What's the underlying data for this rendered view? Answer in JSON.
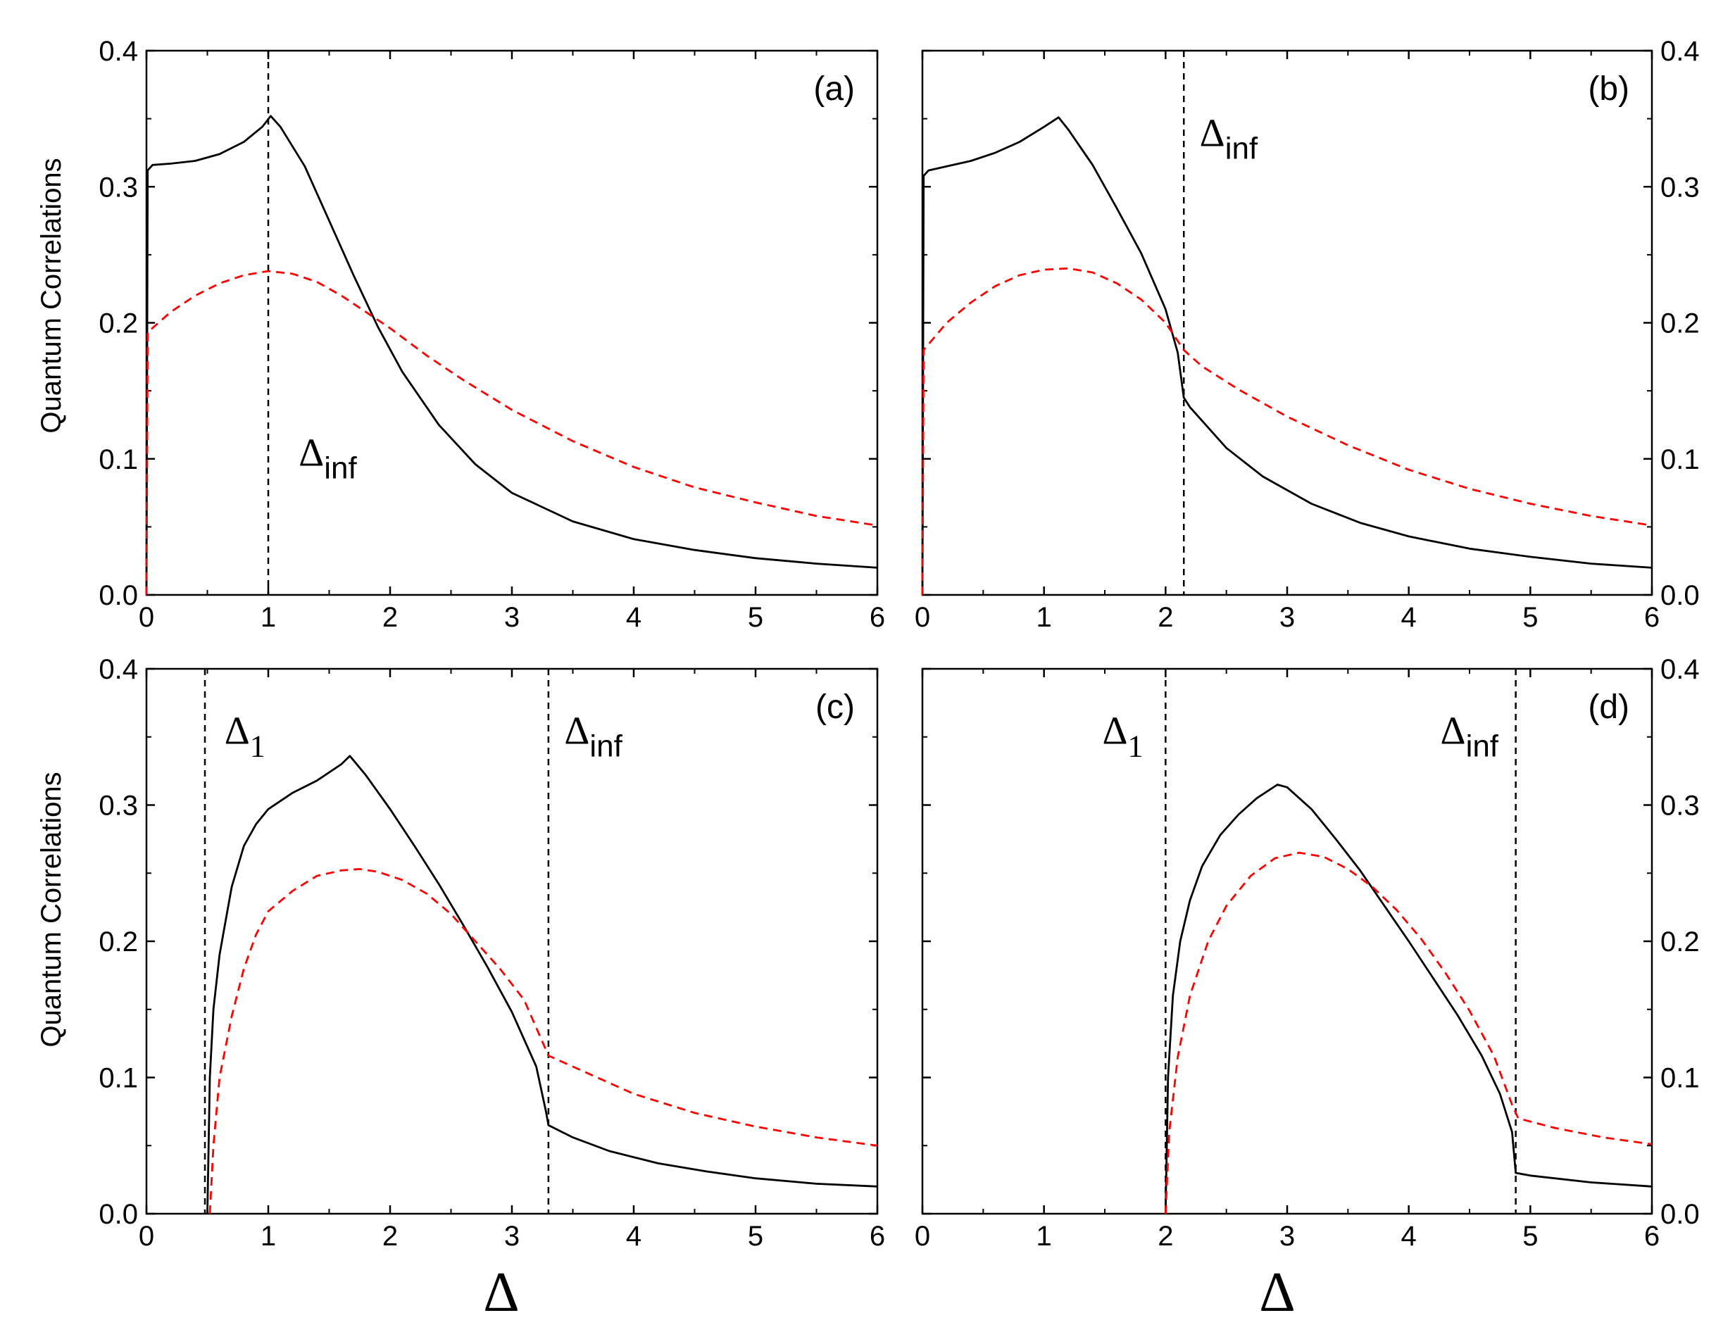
{
  "figure": {
    "ylabel": "Quantum Correlations",
    "xlabel": "Δ"
  },
  "colors": {
    "solid_series": "#000000",
    "dashed_series": "#ff0000",
    "marker_lines": "#000000"
  },
  "chart_data": [
    {
      "panel_label": "(a)",
      "type": "line",
      "xlim": [
        0,
        6
      ],
      "ylim": [
        0,
        0.4
      ],
      "x_ticks": [
        "0",
        "1",
        "2",
        "3",
        "4",
        "5",
        "6"
      ],
      "y_ticks": [
        "0.0",
        "0.1",
        "0.2",
        "0.3",
        "0.4"
      ],
      "y_tick_labels_side": "left",
      "markers": [
        {
          "x": 1.0,
          "symbol": "Δ",
          "sub": "inf",
          "label_x": 1.25,
          "label_y": 0.095
        }
      ],
      "series": [
        {
          "style": "solid",
          "color": "#000000",
          "points": [
            [
              0.0,
              0.0
            ],
            [
              0.01,
              0.312
            ],
            [
              0.05,
              0.316
            ],
            [
              0.2,
              0.317
            ],
            [
              0.4,
              0.319
            ],
            [
              0.6,
              0.324
            ],
            [
              0.8,
              0.333
            ],
            [
              0.95,
              0.344
            ],
            [
              1.02,
              0.352
            ],
            [
              1.1,
              0.344
            ],
            [
              1.3,
              0.315
            ],
            [
              1.5,
              0.275
            ],
            [
              1.7,
              0.235
            ],
            [
              1.9,
              0.197
            ],
            [
              2.1,
              0.164
            ],
            [
              2.4,
              0.125
            ],
            [
              2.7,
              0.096
            ],
            [
              3.0,
              0.075
            ],
            [
              3.5,
              0.054
            ],
            [
              4.0,
              0.041
            ],
            [
              4.5,
              0.033
            ],
            [
              5.0,
              0.027
            ],
            [
              5.5,
              0.023
            ],
            [
              6.0,
              0.02
            ]
          ]
        },
        {
          "style": "dashed",
          "color": "#ff0000",
          "points": [
            [
              0.0,
              0.0
            ],
            [
              0.01,
              0.193
            ],
            [
              0.2,
              0.208
            ],
            [
              0.4,
              0.22
            ],
            [
              0.6,
              0.229
            ],
            [
              0.8,
              0.235
            ],
            [
              1.0,
              0.238
            ],
            [
              1.2,
              0.236
            ],
            [
              1.4,
              0.23
            ],
            [
              1.6,
              0.22
            ],
            [
              1.8,
              0.208
            ],
            [
              2.0,
              0.196
            ],
            [
              2.3,
              0.176
            ],
            [
              2.6,
              0.158
            ],
            [
              3.0,
              0.136
            ],
            [
              3.5,
              0.113
            ],
            [
              4.0,
              0.094
            ],
            [
              4.5,
              0.079
            ],
            [
              5.0,
              0.068
            ],
            [
              5.5,
              0.058
            ],
            [
              6.0,
              0.051
            ]
          ]
        }
      ]
    },
    {
      "panel_label": "(b)",
      "type": "line",
      "xlim": [
        0,
        6
      ],
      "ylim": [
        0,
        0.4
      ],
      "x_ticks": [
        "0",
        "1",
        "2",
        "3",
        "4",
        "5",
        "6"
      ],
      "y_ticks": [
        "0.0",
        "0.1",
        "0.2",
        "0.3",
        "0.4"
      ],
      "y_tick_labels_side": "right",
      "markers": [
        {
          "x": 2.15,
          "symbol": "Δ",
          "sub": "inf",
          "label_x": 2.28,
          "label_y": 0.33
        }
      ],
      "series": [
        {
          "style": "solid",
          "color": "#000000",
          "points": [
            [
              0.0,
              0.0
            ],
            [
              0.01,
              0.308
            ],
            [
              0.05,
              0.312
            ],
            [
              0.2,
              0.315
            ],
            [
              0.4,
              0.319
            ],
            [
              0.6,
              0.325
            ],
            [
              0.8,
              0.333
            ],
            [
              1.0,
              0.344
            ],
            [
              1.12,
              0.351
            ],
            [
              1.2,
              0.342
            ],
            [
              1.4,
              0.316
            ],
            [
              1.6,
              0.284
            ],
            [
              1.8,
              0.251
            ],
            [
              2.0,
              0.21
            ],
            [
              2.1,
              0.178
            ],
            [
              2.15,
              0.145
            ],
            [
              2.2,
              0.138
            ],
            [
              2.5,
              0.108
            ],
            [
              2.8,
              0.087
            ],
            [
              3.2,
              0.067
            ],
            [
              3.6,
              0.053
            ],
            [
              4.0,
              0.043
            ],
            [
              4.5,
              0.034
            ],
            [
              5.0,
              0.028
            ],
            [
              5.5,
              0.023
            ],
            [
              6.0,
              0.02
            ]
          ]
        },
        {
          "style": "dashed",
          "color": "#ff0000",
          "points": [
            [
              0.0,
              0.0
            ],
            [
              0.01,
              0.18
            ],
            [
              0.2,
              0.2
            ],
            [
              0.4,
              0.215
            ],
            [
              0.6,
              0.227
            ],
            [
              0.8,
              0.235
            ],
            [
              1.0,
              0.239
            ],
            [
              1.2,
              0.24
            ],
            [
              1.4,
              0.237
            ],
            [
              1.6,
              0.229
            ],
            [
              1.8,
              0.217
            ],
            [
              2.0,
              0.2
            ],
            [
              2.15,
              0.18
            ],
            [
              2.3,
              0.168
            ],
            [
              2.6,
              0.151
            ],
            [
              3.0,
              0.131
            ],
            [
              3.5,
              0.11
            ],
            [
              4.0,
              0.092
            ],
            [
              4.5,
              0.078
            ],
            [
              5.0,
              0.067
            ],
            [
              5.5,
              0.058
            ],
            [
              6.0,
              0.051
            ]
          ]
        }
      ]
    },
    {
      "panel_label": "(c)",
      "type": "line",
      "xlim": [
        0,
        6
      ],
      "ylim": [
        0,
        0.4
      ],
      "x_ticks": [
        "0",
        "1",
        "2",
        "3",
        "4",
        "5",
        "6"
      ],
      "y_ticks": [
        "0.0",
        "0.1",
        "0.2",
        "0.3",
        "0.4"
      ],
      "y_tick_labels_side": "left",
      "markers": [
        {
          "x": 0.48,
          "symbol": "Δ",
          "sub": "1",
          "label_x": 0.64,
          "label_y": 0.345
        },
        {
          "x": 3.3,
          "symbol": "Δ",
          "sub": "inf",
          "label_x": 3.43,
          "label_y": 0.345
        }
      ],
      "series": [
        {
          "style": "solid",
          "color": "#000000",
          "points": [
            [
              0.5,
              0.0
            ],
            [
              0.52,
              0.1
            ],
            [
              0.55,
              0.15
            ],
            [
              0.6,
              0.19
            ],
            [
              0.65,
              0.215
            ],
            [
              0.7,
              0.24
            ],
            [
              0.8,
              0.27
            ],
            [
              0.9,
              0.286
            ],
            [
              1.0,
              0.297
            ],
            [
              1.2,
              0.309
            ],
            [
              1.4,
              0.318
            ],
            [
              1.6,
              0.33
            ],
            [
              1.67,
              0.336
            ],
            [
              1.8,
              0.322
            ],
            [
              2.0,
              0.297
            ],
            [
              2.2,
              0.27
            ],
            [
              2.4,
              0.242
            ],
            [
              2.6,
              0.212
            ],
            [
              2.8,
              0.181
            ],
            [
              3.0,
              0.148
            ],
            [
              3.2,
              0.108
            ],
            [
              3.28,
              0.075
            ],
            [
              3.3,
              0.065
            ],
            [
              3.5,
              0.056
            ],
            [
              3.8,
              0.046
            ],
            [
              4.2,
              0.037
            ],
            [
              4.6,
              0.031
            ],
            [
              5.0,
              0.026
            ],
            [
              5.5,
              0.022
            ],
            [
              6.0,
              0.02
            ]
          ]
        },
        {
          "style": "dashed",
          "color": "#ff0000",
          "points": [
            [
              0.52,
              0.0
            ],
            [
              0.55,
              0.05
            ],
            [
              0.6,
              0.1
            ],
            [
              0.7,
              0.145
            ],
            [
              0.8,
              0.18
            ],
            [
              0.9,
              0.205
            ],
            [
              1.0,
              0.222
            ],
            [
              1.2,
              0.237
            ],
            [
              1.4,
              0.248
            ],
            [
              1.6,
              0.252
            ],
            [
              1.75,
              0.253
            ],
            [
              1.9,
              0.251
            ],
            [
              2.1,
              0.245
            ],
            [
              2.3,
              0.235
            ],
            [
              2.5,
              0.22
            ],
            [
              2.7,
              0.2
            ],
            [
              2.9,
              0.18
            ],
            [
              3.1,
              0.157
            ],
            [
              3.3,
              0.116
            ],
            [
              3.5,
              0.108
            ],
            [
              4.0,
              0.088
            ],
            [
              4.5,
              0.074
            ],
            [
              5.0,
              0.064
            ],
            [
              5.5,
              0.056
            ],
            [
              6.0,
              0.05
            ]
          ]
        }
      ]
    },
    {
      "panel_label": "(d)",
      "type": "line",
      "xlim": [
        0,
        6
      ],
      "ylim": [
        0,
        0.4
      ],
      "x_ticks": [
        "0",
        "1",
        "2",
        "3",
        "4",
        "5",
        "6"
      ],
      "y_ticks": [
        "0.0",
        "0.1",
        "0.2",
        "0.3",
        "0.4"
      ],
      "y_tick_labels_side": "right",
      "markers": [
        {
          "x": 2.0,
          "symbol": "Δ",
          "sub": "1",
          "label_x": 1.48,
          "label_y": 0.345
        },
        {
          "x": 4.88,
          "symbol": "Δ",
          "sub": "inf",
          "label_x": 4.26,
          "label_y": 0.345
        }
      ],
      "series": [
        {
          "style": "solid",
          "color": "#000000",
          "points": [
            [
              2.0,
              0.0
            ],
            [
              2.02,
              0.1
            ],
            [
              2.06,
              0.16
            ],
            [
              2.12,
              0.2
            ],
            [
              2.2,
              0.23
            ],
            [
              2.3,
              0.255
            ],
            [
              2.45,
              0.278
            ],
            [
              2.6,
              0.293
            ],
            [
              2.75,
              0.305
            ],
            [
              2.92,
              0.315
            ],
            [
              3.0,
              0.313
            ],
            [
              3.2,
              0.297
            ],
            [
              3.4,
              0.275
            ],
            [
              3.6,
              0.252
            ],
            [
              3.8,
              0.226
            ],
            [
              4.0,
              0.2
            ],
            [
              4.2,
              0.173
            ],
            [
              4.4,
              0.146
            ],
            [
              4.6,
              0.116
            ],
            [
              4.75,
              0.088
            ],
            [
              4.85,
              0.06
            ],
            [
              4.88,
              0.03
            ],
            [
              5.0,
              0.028
            ],
            [
              5.5,
              0.023
            ],
            [
              6.0,
              0.02
            ]
          ]
        },
        {
          "style": "dashed",
          "color": "#ff0000",
          "points": [
            [
              2.0,
              0.0
            ],
            [
              2.03,
              0.06
            ],
            [
              2.1,
              0.115
            ],
            [
              2.2,
              0.16
            ],
            [
              2.35,
              0.2
            ],
            [
              2.5,
              0.226
            ],
            [
              2.7,
              0.248
            ],
            [
              2.9,
              0.261
            ],
            [
              3.1,
              0.265
            ],
            [
              3.3,
              0.262
            ],
            [
              3.5,
              0.253
            ],
            [
              3.7,
              0.24
            ],
            [
              3.9,
              0.223
            ],
            [
              4.1,
              0.202
            ],
            [
              4.3,
              0.177
            ],
            [
              4.5,
              0.149
            ],
            [
              4.7,
              0.116
            ],
            [
              4.85,
              0.08
            ],
            [
              4.9,
              0.07
            ],
            [
              5.2,
              0.063
            ],
            [
              5.6,
              0.056
            ],
            [
              6.0,
              0.051
            ]
          ]
        }
      ]
    }
  ]
}
